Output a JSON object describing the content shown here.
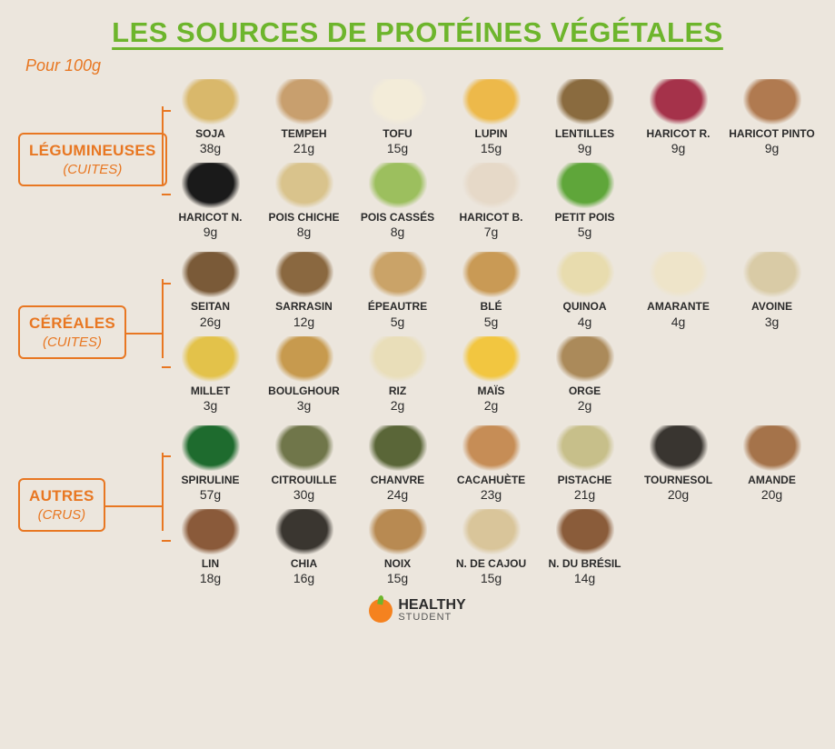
{
  "colors": {
    "title": "#6db52c",
    "subtitle": "#e87722",
    "background": "#ece6dd",
    "text": "#2b2b2b",
    "logo_orange": "#f5821f"
  },
  "title": "LES SOURCES DE PROTÉINES VÉGÉTALES",
  "subtitle": "Pour 100g",
  "categories": [
    {
      "name": "LÉGUMINEUSES",
      "state": "(CUITES)",
      "color": "#e87722",
      "rows": [
        [
          {
            "name": "SOJA",
            "value": "38g",
            "img_color": "#d9b86b"
          },
          {
            "name": "TEMPEH",
            "value": "21g",
            "img_color": "#c89f6e"
          },
          {
            "name": "TOFU",
            "value": "15g",
            "img_color": "#f3ecd9"
          },
          {
            "name": "LUPIN",
            "value": "15g",
            "img_color": "#edb94a"
          },
          {
            "name": "LENTILLES",
            "value": "9g",
            "img_color": "#8a6b3f"
          },
          {
            "name": "HARICOT R.",
            "value": "9g",
            "img_color": "#a5324a"
          },
          {
            "name": "HARICOT PINTO",
            "value": "9g",
            "img_color": "#b07a50"
          }
        ],
        [
          {
            "name": "HARICOT N.",
            "value": "9g",
            "img_color": "#1a1a1a"
          },
          {
            "name": "POIS CHICHE",
            "value": "8g",
            "img_color": "#d9c38c"
          },
          {
            "name": "POIS CASSÉS",
            "value": "8g",
            "img_color": "#9cbf5e"
          },
          {
            "name": "HARICOT B.",
            "value": "7g",
            "img_color": "#e6d9c8"
          },
          {
            "name": "PETIT POIS",
            "value": "5g",
            "img_color": "#5fa63a"
          }
        ]
      ]
    },
    {
      "name": "CÉRÉALES",
      "state": "(CUITES)",
      "color": "#e87722",
      "rows": [
        [
          {
            "name": "SEITAN",
            "value": "26g",
            "img_color": "#7a5a38"
          },
          {
            "name": "SARRASIN",
            "value": "12g",
            "img_color": "#8a6840"
          },
          {
            "name": "ÉPEAUTRE",
            "value": "5g",
            "img_color": "#caa368"
          },
          {
            "name": "BLÉ",
            "value": "5g",
            "img_color": "#c99a55"
          },
          {
            "name": "QUINOA",
            "value": "4g",
            "img_color": "#e8dcae"
          },
          {
            "name": "AMARANTE",
            "value": "4g",
            "img_color": "#eee4c9"
          },
          {
            "name": "AVOINE",
            "value": "3g",
            "img_color": "#d9cba6"
          }
        ],
        [
          {
            "name": "MILLET",
            "value": "3g",
            "img_color": "#e3c24a"
          },
          {
            "name": "BOULGHOUR",
            "value": "3g",
            "img_color": "#c79a4e"
          },
          {
            "name": "RIZ",
            "value": "2g",
            "img_color": "#e9deb9"
          },
          {
            "name": "MAÏS",
            "value": "2g",
            "img_color": "#f2c640"
          },
          {
            "name": "ORGE",
            "value": "2g",
            "img_color": "#ab8a5a"
          }
        ]
      ]
    },
    {
      "name": "AUTRES",
      "state": "(CRUS)",
      "color": "#e87722",
      "rows": [
        [
          {
            "name": "SPIRULINE",
            "value": "57g",
            "img_color": "#1e6b2e"
          },
          {
            "name": "CITROUILLE",
            "value": "30g",
            "img_color": "#70764a"
          },
          {
            "name": "CHANVRE",
            "value": "24g",
            "img_color": "#5a6638"
          },
          {
            "name": "CACAHUÈTE",
            "value": "23g",
            "img_color": "#c68d56"
          },
          {
            "name": "PISTACHE",
            "value": "21g",
            "img_color": "#c7bf8a"
          },
          {
            "name": "TOURNESOL",
            "value": "20g",
            "img_color": "#393530"
          },
          {
            "name": "AMANDE",
            "value": "20g",
            "img_color": "#a5734a"
          }
        ],
        [
          {
            "name": "LIN",
            "value": "18g",
            "img_color": "#8a5a3a"
          },
          {
            "name": "CHIA",
            "value": "16g",
            "img_color": "#3a3630"
          },
          {
            "name": "NOIX",
            "value": "15g",
            "img_color": "#b88a52"
          },
          {
            "name": "N. DE CAJOU",
            "value": "15g",
            "img_color": "#d9c59a"
          },
          {
            "name": "N. DU BRÉSIL",
            "value": "14g",
            "img_color": "#8a5c3a"
          }
        ]
      ]
    }
  ],
  "footer": {
    "brand_main": "HEALTHY",
    "brand_sub": "STUDENT"
  }
}
